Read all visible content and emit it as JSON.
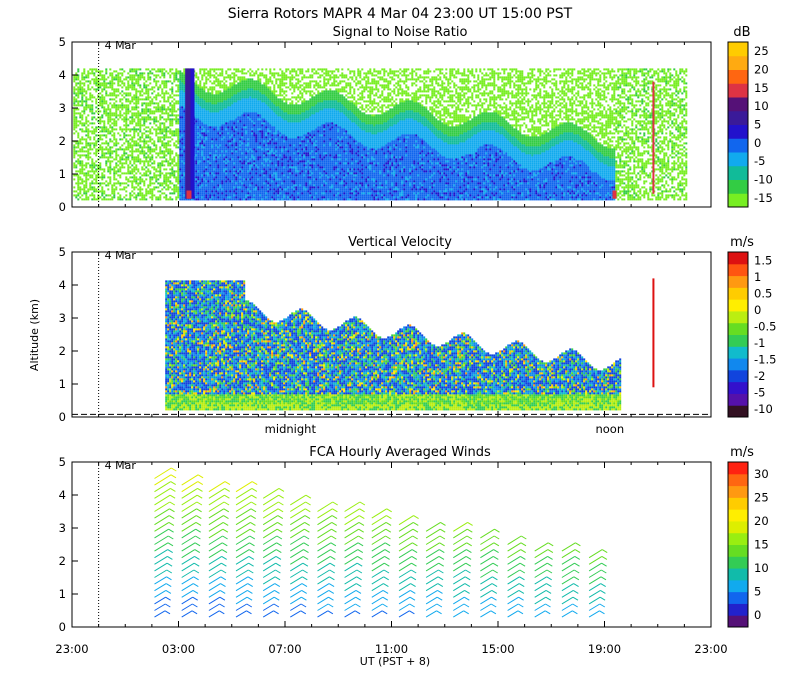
{
  "figure": {
    "title": "Sierra Rotors   MAPR   4 Mar 04   23:00 UT   15:00   PST",
    "xlabel": "UT  (PST + 8)",
    "x_ticks": [
      "23:00",
      "03:00",
      "07:00",
      "11:00",
      "15:00",
      "19:00",
      "23:00"
    ],
    "ylabel": "Altitude (km)",
    "date_marker": "4 Mar",
    "midnight_label": "midnight",
    "noon_label": "noon"
  },
  "chart_data": [
    {
      "type": "heatmap",
      "title": "Signal to Noise Ratio",
      "unit": "dB",
      "x_range_hours": [
        0,
        24
      ],
      "ylim": [
        0,
        5
      ],
      "y_ticks": [
        "0",
        "1",
        "2",
        "3",
        "4",
        "5"
      ],
      "data_x_range_hours": [
        0.05,
        23.1
      ],
      "top_km": 4.2,
      "colorbar": {
        "labels": [
          "-15",
          "-10",
          "-5",
          "0",
          "5",
          "10",
          "15",
          "20",
          "25"
        ],
        "colors": [
          "#77ee22",
          "#33cc44",
          "#11bb99",
          "#11aaee",
          "#1166ee",
          "#2211cc",
          "#3a1a99",
          "#551177",
          "#dd3344",
          "#ff6611",
          "#ffaa11",
          "#ffcc00"
        ]
      }
    },
    {
      "type": "heatmap",
      "title": "Vertical Velocity",
      "unit": "m/s",
      "x_range_hours": [
        0,
        24
      ],
      "ylim": [
        0,
        5
      ],
      "y_ticks": [
        "0",
        "1",
        "2",
        "3",
        "4",
        "5"
      ],
      "data_x_range_hours": [
        3.5,
        21.1
      ],
      "top_km": 4.2,
      "colorbar": {
        "labels": [
          "-10",
          "-5",
          "-2",
          "-1.5",
          "-1",
          "-0.5",
          "0",
          "0.5",
          "1",
          "1.5"
        ],
        "colors": [
          "#331122",
          "#5511aa",
          "#3311cc",
          "#1144dd",
          "#1188ee",
          "#11bbcc",
          "#33cc55",
          "#66dd22",
          "#bbee11",
          "#ffee00",
          "#ffcc00",
          "#ff9911",
          "#ff5511",
          "#dd1111"
        ]
      }
    },
    {
      "type": "scatter",
      "title": "FCA Hourly Averaged Winds",
      "unit": "m/s",
      "x_range_hours": [
        0,
        24
      ],
      "ylim": [
        0,
        5
      ],
      "y_ticks": [
        "0",
        "1",
        "2",
        "3",
        "4",
        "5"
      ],
      "profiles_hour": [
        4,
        5,
        6,
        7,
        8,
        9,
        10,
        11,
        12,
        13,
        14,
        15,
        16,
        17,
        18,
        19,
        20
      ],
      "colorbar": {
        "labels": [
          "0",
          "5",
          "10",
          "15",
          "20",
          "25",
          "30"
        ],
        "colors": [
          "#551177",
          "#2222cc",
          "#1166ee",
          "#11aaee",
          "#11bbaa",
          "#33cc55",
          "#66dd22",
          "#99ee11",
          "#ddee00",
          "#ffee00",
          "#ffcc00",
          "#ff9911",
          "#ff6611",
          "#ff2211"
        ]
      }
    }
  ]
}
